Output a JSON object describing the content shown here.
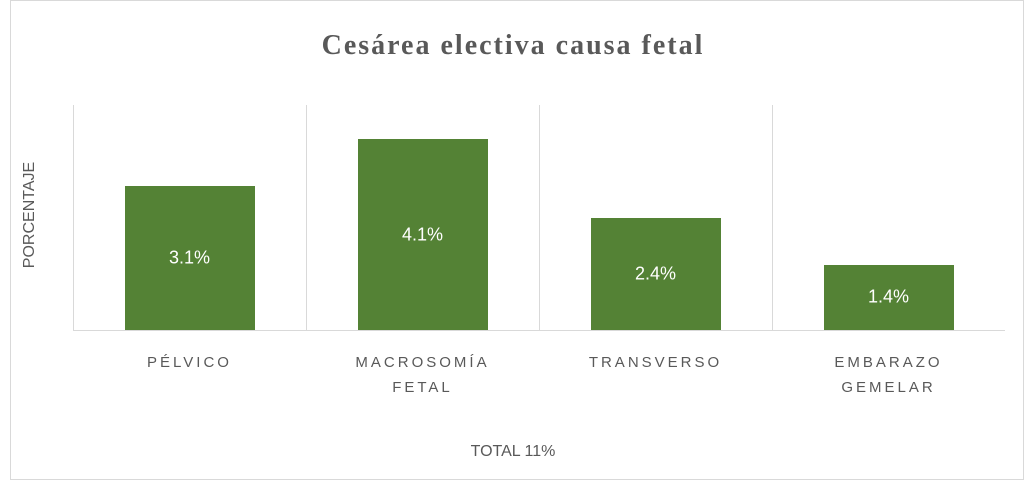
{
  "chart_data": {
    "type": "bar",
    "title": "Cesárea electiva causa fetal",
    "y_label": "PORCENTAJE",
    "x_label": "TOTAL 11%",
    "categories": [
      "PÉLVICO",
      "MACROSOMÍA FETAL",
      "TRANSVERSO",
      "EMBARAZO GEMELAR"
    ],
    "values": [
      3.1,
      4.1,
      2.4,
      1.4
    ],
    "value_labels": [
      "3.1%",
      "4.1%",
      "2.4%",
      "1.4%"
    ],
    "color": "#548235"
  }
}
